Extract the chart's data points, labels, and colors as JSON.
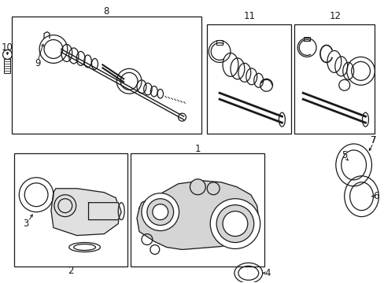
{
  "bg_color": "#ffffff",
  "line_color": "#1a1a1a",
  "boxes": {
    "8": [
      0.025,
      0.505,
      0.525,
      0.965
    ],
    "11": [
      0.535,
      0.525,
      0.755,
      0.96
    ],
    "12": [
      0.765,
      0.525,
      0.985,
      0.96
    ],
    "2": [
      0.03,
      0.035,
      0.325,
      0.49
    ],
    "1": [
      0.335,
      0.035,
      0.68,
      0.49
    ]
  },
  "label_fs": 8.5
}
